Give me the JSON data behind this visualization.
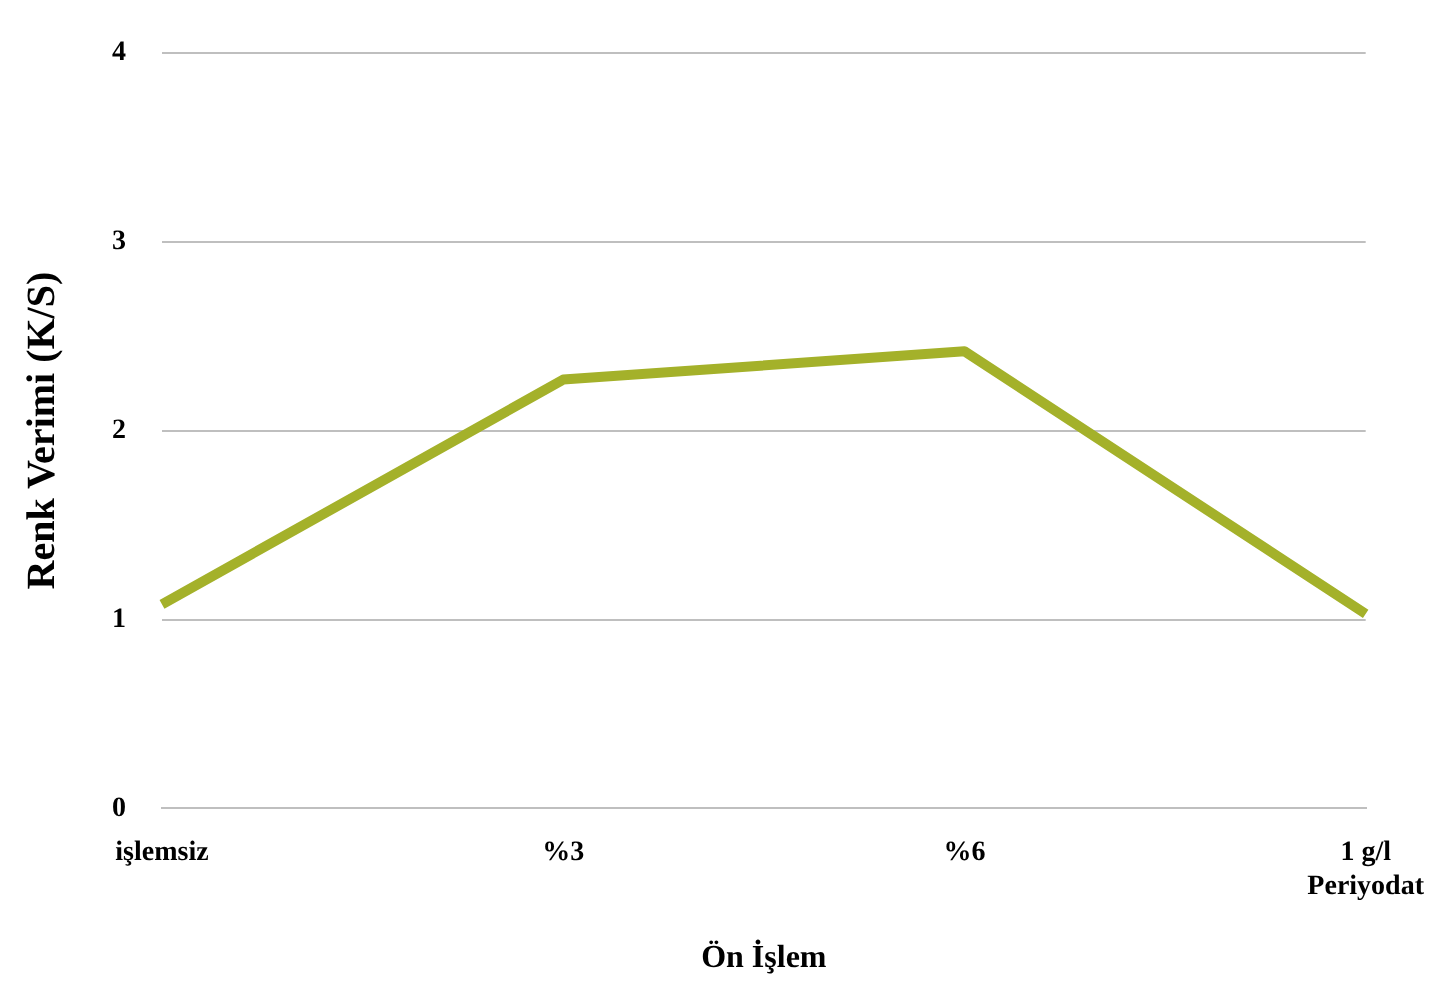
{
  "chart_data": {
    "type": "line",
    "xlabel": "Ön İşlem",
    "ylabel": "Renk Verimi (K/S)",
    "categories": [
      "işlemsiz",
      "%3",
      "%6",
      "1 g/l\nPeriyodat"
    ],
    "series": [
      {
        "color": "#a4b12a",
        "values": [
          1.08,
          2.27,
          2.42,
          1.03
        ]
      }
    ],
    "ylim": [
      0,
      4
    ],
    "yticks": [
      0,
      1,
      2,
      3,
      4
    ],
    "grid": "y",
    "legend": false,
    "marker": "none",
    "line_style": "solid"
  }
}
